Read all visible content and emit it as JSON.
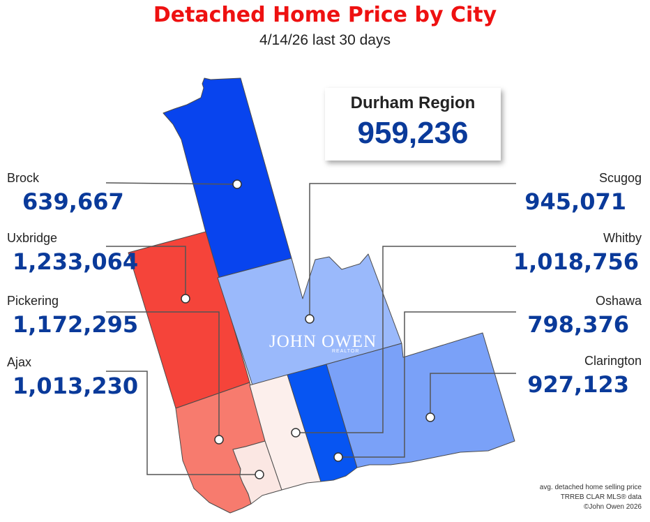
{
  "title": "Detached Home Price by City",
  "subtitle": "4/14/26  last 30 days",
  "region": {
    "name": "Durham Region",
    "value": "959,236"
  },
  "cities": {
    "brock": {
      "name": "Brock",
      "value": "639,667",
      "color": "#0844ee"
    },
    "uxbridge": {
      "name": "Uxbridge",
      "value": "1,233,064",
      "color": "#f5443a"
    },
    "pickering": {
      "name": "Pickering",
      "value": "1,172,295",
      "color": "#f77b6e"
    },
    "ajax": {
      "name": "Ajax",
      "value": "1,013,230",
      "color": "#fbe7e3"
    },
    "scugog": {
      "name": "Scugog",
      "value": "945,071",
      "color": "#9ab9fb"
    },
    "whitby": {
      "name": "Whitby",
      "value": "1,018,756",
      "color": "#fcefec"
    },
    "oshawa": {
      "name": "Oshawa",
      "value": "798,376",
      "color": "#0755f2"
    },
    "clarington": {
      "name": "Clarington",
      "value": "927,123",
      "color": "#7aa1f8"
    }
  },
  "watermark": {
    "brand": "JOHN OWEN",
    "tag": "REALTOR"
  },
  "footer": {
    "line1": "avg. detached home selling price",
    "line2": "TRREB CLAR MLS® data",
    "line3": "©John Owen 2026"
  }
}
